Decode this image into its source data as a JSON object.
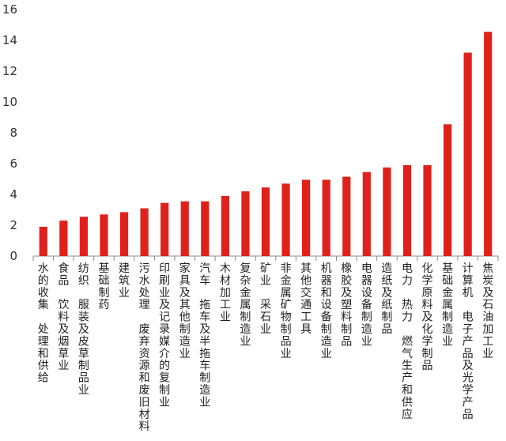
{
  "chart_data": {
    "type": "bar",
    "title": "",
    "xlabel": "",
    "ylabel": "",
    "ylim": [
      0,
      16
    ],
    "yticks": [
      0,
      2,
      4,
      6,
      8,
      10,
      12,
      14,
      16
    ],
    "grid": false,
    "legend": "none",
    "bar_color": "#e0211b",
    "categories": [
      "水的收集、处理和供给",
      "食品、饮料及烟草业",
      "纺织、服装及皮草制品业",
      "基础制药",
      "建筑业",
      "污水处理、废弃资源和废旧材料",
      "印刷业及记录媒介的复制业",
      "家具及其他制造业",
      "汽车、拖车及半拖车制造业",
      "木材加工业",
      "复杂金属制造业",
      "矿业、采石业",
      "非金属矿物制品业",
      "其他交通工具",
      "机器和设备制造业",
      "橡胶及塑料制品",
      "电器设备制造业",
      "造纸及纸制品",
      "电力、热力、燃气生产和供应",
      "化学原料及化学制品",
      "基础金属制造业",
      "计算机、电子产品及光学产品",
      "焦炭及石油加工业"
    ],
    "values": [
      1.9,
      2.3,
      2.55,
      2.7,
      2.85,
      3.1,
      3.45,
      3.55,
      3.55,
      3.9,
      4.2,
      4.45,
      4.7,
      4.95,
      4.95,
      5.15,
      5.45,
      5.75,
      5.9,
      5.9,
      8.55,
      13.2,
      14.55
    ]
  }
}
